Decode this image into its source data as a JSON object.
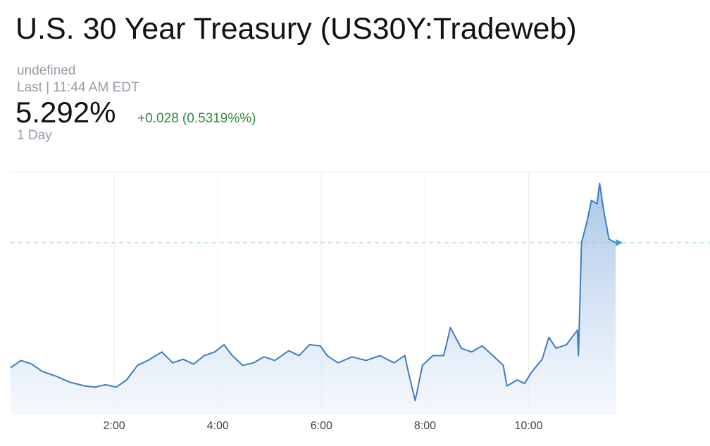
{
  "chart_data": {
    "type": "line",
    "title": "U.S. 30 Year Treasury (US30Y:Tradeweb)",
    "subtitle": "undefined",
    "timestamp": "Last | 11:44 AM EDT",
    "last": "5.292%",
    "change": "+0.028 (0.5319%%)",
    "period": "1 Day",
    "color": "#3d7cc4",
    "reference_color": "#8fcf9a",
    "grid": true,
    "xlim": [
      0,
      13.5
    ],
    "ylim": [
      5.15,
      5.35
    ],
    "xticks": [
      {
        "value": 2,
        "label": "2:00"
      },
      {
        "value": 4,
        "label": "4:00"
      },
      {
        "value": 6,
        "label": "6:00"
      },
      {
        "value": 8,
        "label": "8:00"
      },
      {
        "value": 10,
        "label": "10:00"
      }
    ],
    "x": [
      0,
      0.2,
      0.41,
      0.61,
      0.88,
      1.15,
      1.43,
      1.63,
      1.83,
      2.04,
      2.24,
      2.45,
      2.65,
      2.92,
      3.13,
      3.33,
      3.53,
      3.74,
      3.94,
      4.12,
      4.28,
      4.48,
      4.69,
      4.89,
      5.1,
      5.37,
      5.57,
      5.77,
      5.98,
      6.11,
      6.32,
      6.59,
      6.86,
      7.13,
      7.4,
      7.61,
      7.68,
      7.81,
      7.95,
      8.15,
      8.36,
      8.49,
      8.7,
      8.9,
      9.1,
      9.31,
      9.51,
      9.58,
      9.78,
      9.92,
      10.05,
      10.26,
      10.39,
      10.53,
      10.73,
      10.94,
      10.96,
      11.02,
      11.14,
      11.21,
      11.32,
      11.37,
      11.45,
      11.55,
      11.68
    ],
    "values": [
      5.189,
      5.195,
      5.192,
      5.186,
      5.182,
      5.177,
      5.174,
      5.173,
      5.175,
      5.173,
      5.179,
      5.191,
      5.195,
      5.202,
      5.193,
      5.196,
      5.192,
      5.199,
      5.202,
      5.208,
      5.199,
      5.191,
      5.193,
      5.198,
      5.195,
      5.203,
      5.199,
      5.208,
      5.207,
      5.199,
      5.193,
      5.198,
      5.195,
      5.199,
      5.193,
      5.199,
      5.185,
      5.162,
      5.191,
      5.199,
      5.199,
      5.222,
      5.205,
      5.202,
      5.207,
      5.199,
      5.191,
      5.174,
      5.179,
      5.176,
      5.185,
      5.196,
      5.214,
      5.205,
      5.208,
      5.22,
      5.199,
      5.292,
      5.312,
      5.327,
      5.324,
      5.341,
      5.318,
      5.295,
      5.292
    ]
  }
}
